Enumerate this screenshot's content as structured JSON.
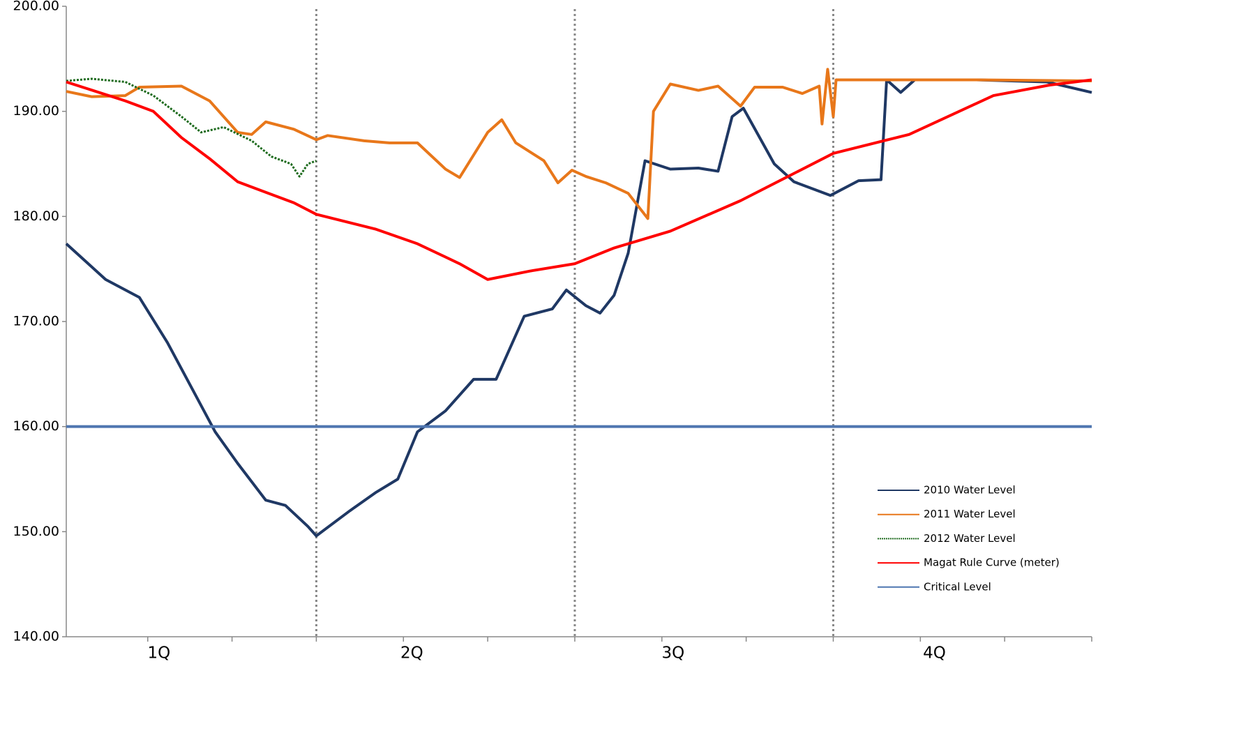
{
  "chart_data": {
    "type": "line",
    "xlim": [
      0,
      365
    ],
    "ylim": [
      140,
      200
    ],
    "yticks": [
      {
        "value": 140,
        "label": "140.00"
      },
      {
        "value": 150,
        "label": "150.00"
      },
      {
        "value": 160,
        "label": "160.00"
      },
      {
        "value": 170,
        "label": "170.00"
      },
      {
        "value": 180,
        "label": "180.00"
      },
      {
        "value": 190,
        "label": "190.00"
      },
      {
        "value": 200,
        "label": "200.00"
      }
    ],
    "xticks": [
      {
        "value": 33,
        "label": "1Q"
      },
      {
        "value": 123,
        "label": "2Q"
      },
      {
        "value": 216,
        "label": "3Q"
      },
      {
        "value": 309,
        "label": "4Q"
      }
    ],
    "xminorticks": [
      29,
      59,
      89,
      120,
      150,
      181,
      212,
      242,
      273,
      304,
      334,
      365
    ],
    "vlines": [
      89,
      181,
      273
    ],
    "legend": "lower right",
    "series": [
      {
        "name": "2010 Water Level",
        "color": "#1f3864",
        "width": 4,
        "dash": "solid",
        "x": [
          0,
          14,
          26,
          36,
          46,
          53,
          61,
          71,
          78,
          86,
          89,
          101,
          110,
          118,
          125,
          135,
          145,
          153,
          163,
          173,
          178,
          185,
          190,
          195,
          200,
          206,
          215,
          225,
          232,
          237,
          241,
          252,
          259,
          272,
          282,
          290,
          292,
          297,
          302,
          324,
          349,
          365
        ],
        "values": [
          177.4,
          174,
          172.3,
          168,
          163,
          159.5,
          156.5,
          153,
          152.5,
          150.5,
          149.6,
          152,
          153.7,
          155,
          159.5,
          161.5,
          164.5,
          164.5,
          170.5,
          171.2,
          173,
          171.5,
          170.8,
          172.5,
          176.5,
          185.3,
          184.5,
          184.6,
          184.3,
          189.5,
          190.3,
          185,
          183.3,
          182,
          183.4,
          183.5,
          193,
          191.8,
          193,
          193,
          192.8,
          191.8
        ]
      },
      {
        "name": "2011 Water Level",
        "color": "#e8771a",
        "width": 4,
        "dash": "solid",
        "x": [
          0,
          9,
          21,
          26,
          41,
          51,
          61,
          66,
          71,
          81,
          89,
          93,
          106,
          115,
          125,
          135,
          140,
          150,
          155,
          160,
          170,
          175,
          180,
          185,
          192,
          200,
          207,
          209,
          215,
          225,
          232,
          240,
          245,
          255,
          262,
          268,
          269,
          271,
          273,
          274,
          284,
          299,
          324,
          365
        ],
        "values": [
          191.9,
          191.4,
          191.5,
          192.3,
          192.4,
          191,
          188,
          187.8,
          189,
          188.3,
          187.3,
          187.7,
          187.2,
          187,
          187,
          184.5,
          183.7,
          188,
          189.2,
          187,
          185.3,
          183.2,
          184.4,
          183.8,
          183.2,
          182.2,
          179.8,
          190,
          192.6,
          192,
          192.4,
          190.5,
          192.3,
          192.3,
          191.7,
          192.4,
          188.8,
          194,
          189.5,
          193,
          193,
          193,
          193,
          192.9
        ]
      },
      {
        "name": "2012 Water Level",
        "color": "#1e6b1e",
        "width": 3,
        "dash": "dotted",
        "x": [
          0,
          9,
          21,
          31,
          41,
          48,
          56,
          66,
          73,
          80,
          83,
          86,
          89
        ],
        "values": [
          192.9,
          193.1,
          192.8,
          191.5,
          189.5,
          188,
          188.5,
          187.2,
          185.7,
          185,
          183.8,
          185,
          185.3
        ]
      },
      {
        "name": "Magat Rule Curve (meter)",
        "color": "#ff0000",
        "width": 4,
        "dash": "solid",
        "x": [
          0,
          21,
          31,
          41,
          51,
          61,
          81,
          89,
          110,
          125,
          140,
          150,
          165,
          181,
          195,
          215,
          240,
          273,
          300,
          330,
          350,
          365
        ],
        "values": [
          192.8,
          191,
          190,
          187.5,
          185.5,
          183.3,
          181.3,
          180.2,
          178.8,
          177.4,
          175.5,
          174,
          174.8,
          175.5,
          177,
          178.6,
          181.5,
          186,
          187.8,
          191.5,
          192.5,
          193
        ]
      },
      {
        "name": "Critical Level",
        "color": "#4f76b0",
        "width": 4,
        "dash": "solid",
        "x": [
          0,
          365
        ],
        "values": [
          160,
          160
        ]
      }
    ]
  }
}
